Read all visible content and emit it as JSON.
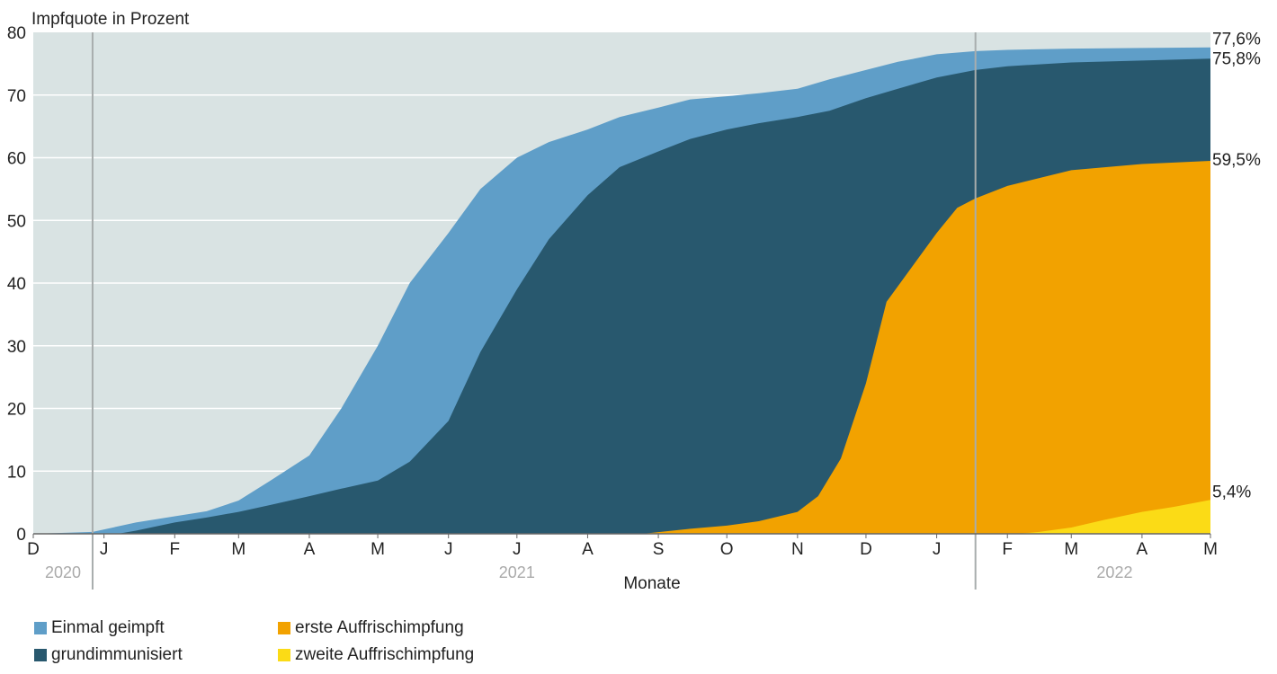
{
  "chart_data": {
    "type": "area",
    "ylabel": "Impfquote in Prozent",
    "xlabel": "Monate",
    "ylim": [
      0,
      80
    ],
    "yticks": [
      0,
      10,
      20,
      30,
      40,
      50,
      60,
      70,
      80
    ],
    "grid": true,
    "background": "#d9e3e3",
    "x_range": [
      "2020-12-01",
      "2022-05-01"
    ],
    "months": [
      {
        "label": "D",
        "date": "2020-12-01"
      },
      {
        "label": "J",
        "date": "2021-01-01"
      },
      {
        "label": "F",
        "date": "2021-02-01"
      },
      {
        "label": "M",
        "date": "2021-03-01"
      },
      {
        "label": "A",
        "date": "2021-04-01"
      },
      {
        "label": "M",
        "date": "2021-05-01"
      },
      {
        "label": "J",
        "date": "2021-06-01"
      },
      {
        "label": "J",
        "date": "2021-07-01"
      },
      {
        "label": "A",
        "date": "2021-08-01"
      },
      {
        "label": "S",
        "date": "2021-09-01"
      },
      {
        "label": "O",
        "date": "2021-10-01"
      },
      {
        "label": "N",
        "date": "2021-11-01"
      },
      {
        "label": "D",
        "date": "2021-12-01"
      },
      {
        "label": "J",
        "date": "2022-01-01"
      },
      {
        "label": "F",
        "date": "2022-02-01"
      },
      {
        "label": "M",
        "date": "2022-03-01"
      },
      {
        "label": "A",
        "date": "2022-04-01"
      },
      {
        "label": "M",
        "date": "2022-05-01"
      }
    ],
    "years": [
      {
        "label": "2020",
        "date": "2020-12-14"
      },
      {
        "label": "2021",
        "date": "2021-07-01"
      },
      {
        "label": "2022",
        "date": "2022-03-20"
      }
    ],
    "year_dividers": [
      "2020-12-27",
      "2022-01-18"
    ],
    "series": [
      {
        "name": "Einmal geimpft",
        "color": "#5f9ec8",
        "end_label": "77,6%",
        "points": [
          [
            "2020-12-01",
            0
          ],
          [
            "2020-12-27",
            0.3
          ],
          [
            "2021-01-15",
            1.8
          ],
          [
            "2021-02-01",
            2.8
          ],
          [
            "2021-02-15",
            3.6
          ],
          [
            "2021-03-01",
            5.3
          ],
          [
            "2021-03-15",
            8.5
          ],
          [
            "2021-04-01",
            12.5
          ],
          [
            "2021-04-15",
            20
          ],
          [
            "2021-05-01",
            30
          ],
          [
            "2021-05-15",
            40
          ],
          [
            "2021-06-01",
            48
          ],
          [
            "2021-06-15",
            55
          ],
          [
            "2021-07-01",
            60
          ],
          [
            "2021-07-15",
            62.5
          ],
          [
            "2021-08-01",
            64.5
          ],
          [
            "2021-08-15",
            66.5
          ],
          [
            "2021-09-01",
            68
          ],
          [
            "2021-09-15",
            69.3
          ],
          [
            "2021-10-01",
            69.8
          ],
          [
            "2021-10-15",
            70.3
          ],
          [
            "2021-11-01",
            71
          ],
          [
            "2021-11-15",
            72.5
          ],
          [
            "2021-12-01",
            74
          ],
          [
            "2021-12-15",
            75.3
          ],
          [
            "2022-01-01",
            76.5
          ],
          [
            "2022-01-18",
            77
          ],
          [
            "2022-02-01",
            77.2
          ],
          [
            "2022-03-01",
            77.4
          ],
          [
            "2022-04-01",
            77.5
          ],
          [
            "2022-05-01",
            77.6
          ]
        ]
      },
      {
        "name": "grundimmunisiert",
        "color": "#28586e",
        "end_label": "75,8%",
        "points": [
          [
            "2020-12-01",
            0
          ],
          [
            "2021-01-07",
            0
          ],
          [
            "2021-01-15",
            0.5
          ],
          [
            "2021-02-01",
            1.8
          ],
          [
            "2021-02-15",
            2.6
          ],
          [
            "2021-03-01",
            3.5
          ],
          [
            "2021-03-15",
            4.6
          ],
          [
            "2021-04-01",
            6
          ],
          [
            "2021-04-15",
            7.2
          ],
          [
            "2021-05-01",
            8.5
          ],
          [
            "2021-05-15",
            11.5
          ],
          [
            "2021-06-01",
            18
          ],
          [
            "2021-06-15",
            29
          ],
          [
            "2021-07-01",
            39
          ],
          [
            "2021-07-15",
            47
          ],
          [
            "2021-08-01",
            54
          ],
          [
            "2021-08-15",
            58.5
          ],
          [
            "2021-09-01",
            61
          ],
          [
            "2021-09-15",
            63
          ],
          [
            "2021-10-01",
            64.5
          ],
          [
            "2021-10-15",
            65.5
          ],
          [
            "2021-11-01",
            66.5
          ],
          [
            "2021-11-15",
            67.5
          ],
          [
            "2021-12-01",
            69.5
          ],
          [
            "2021-12-15",
            71
          ],
          [
            "2022-01-01",
            72.8
          ],
          [
            "2022-01-18",
            74
          ],
          [
            "2022-02-01",
            74.6
          ],
          [
            "2022-03-01",
            75.2
          ],
          [
            "2022-04-01",
            75.5
          ],
          [
            "2022-05-01",
            75.8
          ]
        ]
      },
      {
        "name": "erste Auffrischimpfung",
        "color": "#f2a200",
        "end_label": "59,5%",
        "points": [
          [
            "2020-12-01",
            0
          ],
          [
            "2021-08-25",
            0
          ],
          [
            "2021-09-15",
            0.8
          ],
          [
            "2021-10-01",
            1.3
          ],
          [
            "2021-10-15",
            2
          ],
          [
            "2021-11-01",
            3.5
          ],
          [
            "2021-11-10",
            6
          ],
          [
            "2021-11-20",
            12
          ],
          [
            "2021-12-01",
            24
          ],
          [
            "2021-12-10",
            37
          ],
          [
            "2021-12-20",
            42
          ],
          [
            "2022-01-01",
            48
          ],
          [
            "2022-01-10",
            52
          ],
          [
            "2022-01-18",
            53.5
          ],
          [
            "2022-02-01",
            55.5
          ],
          [
            "2022-03-01",
            58
          ],
          [
            "2022-04-01",
            59
          ],
          [
            "2022-05-01",
            59.5
          ]
        ]
      },
      {
        "name": "zweite Auffrischimpfung",
        "color": "#fbdb16",
        "end_label": "5,4%",
        "points": [
          [
            "2020-12-01",
            0
          ],
          [
            "2022-02-05",
            0
          ],
          [
            "2022-02-15",
            0.3
          ],
          [
            "2022-03-01",
            1
          ],
          [
            "2022-03-15",
            2.2
          ],
          [
            "2022-04-01",
            3.5
          ],
          [
            "2022-04-15",
            4.3
          ],
          [
            "2022-05-01",
            5.4
          ]
        ]
      }
    ]
  },
  "legend": [
    {
      "label": "Einmal geimpft",
      "color": "#5f9ec8"
    },
    {
      "label": "grundimmunisiert",
      "color": "#28586e"
    },
    {
      "label": "erste Auffrischimpfung",
      "color": "#f2a200"
    },
    {
      "label": "zweite Auffrischimpfung",
      "color": "#fbdb16"
    }
  ]
}
